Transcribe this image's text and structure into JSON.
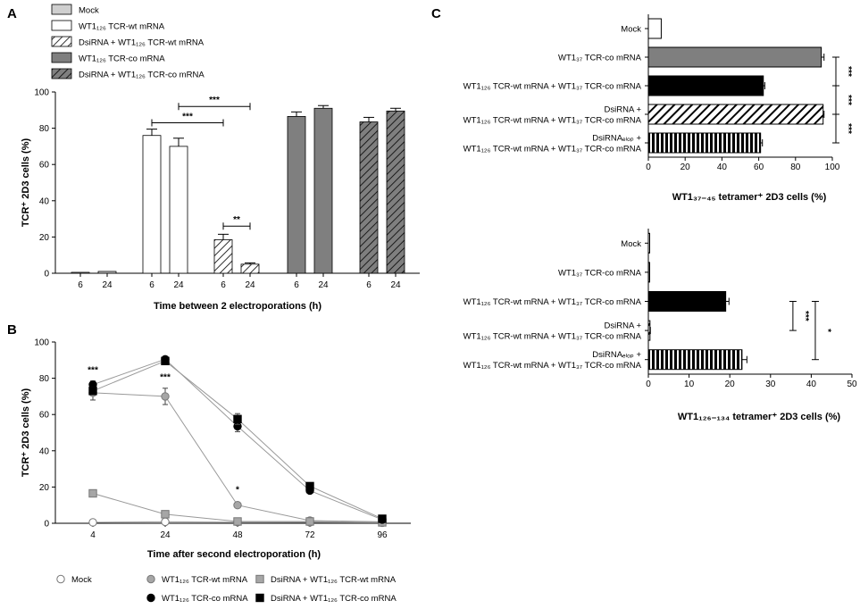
{
  "colors": {
    "mock": "#cfcfcf",
    "wt": "#ffffff",
    "co": "#7f7f7f",
    "co_line": "#000000",
    "wt_line": "#999999",
    "dsi_wt_marker": "#a6a6a6"
  },
  "chart_data": [
    {
      "panel": "A",
      "type": "bar",
      "ylabel": "TCR⁺ 2D3 cells (%)",
      "xlabel": "Time between 2 electroporations (h)",
      "ylim": [
        0,
        100
      ],
      "yticks": [
        0,
        20,
        40,
        60,
        80,
        100
      ],
      "legend": [
        {
          "label": "Mock",
          "pattern": "mock"
        },
        {
          "label": "WT1₁₂₆ TCR-wt mRNA",
          "pattern": "wt"
        },
        {
          "label": "DsiRNA + WT1₁₂₆ TCR-wt mRNA",
          "pattern": "wt-hatch"
        },
        {
          "label": "WT1₁₂₆ TCR-co mRNA",
          "pattern": "co"
        },
        {
          "label": "DsiRNA + WT1₁₂₆ TCR-co mRNA",
          "pattern": "co-hatch"
        }
      ],
      "groups": [
        {
          "pattern": "mock",
          "bars": [
            {
              "x": "6",
              "value": 0.5,
              "err": 0
            },
            {
              "x": "24",
              "value": 1,
              "err": 0
            }
          ]
        },
        {
          "pattern": "wt",
          "bars": [
            {
              "x": "6",
              "value": 76,
              "err": 3.5
            },
            {
              "x": "24",
              "value": 70,
              "err": 4.5
            }
          ]
        },
        {
          "pattern": "wt-hatch",
          "bars": [
            {
              "x": "6",
              "value": 18.5,
              "err": 3
            },
            {
              "x": "24",
              "value": 5,
              "err": 0.7
            }
          ]
        },
        {
          "pattern": "co",
          "bars": [
            {
              "x": "6",
              "value": 86.5,
              "err": 2.5
            },
            {
              "x": "24",
              "value": 91,
              "err": 1.5
            }
          ]
        },
        {
          "pattern": "co-hatch",
          "bars": [
            {
              "x": "6",
              "value": 83.5,
              "err": 2.5
            },
            {
              "x": "24",
              "value": 89.5,
              "err": 1.5
            }
          ]
        }
      ],
      "significance": [
        {
          "label": "***",
          "from": [
            1,
            0
          ],
          "to": [
            2,
            0
          ],
          "y": 83
        },
        {
          "label": "***",
          "from": [
            1,
            1
          ],
          "to": [
            2,
            1
          ],
          "y": 92
        },
        {
          "label": "**",
          "from": [
            2,
            0
          ],
          "to": [
            2,
            1
          ],
          "y": 26
        }
      ]
    },
    {
      "panel": "B",
      "type": "line",
      "ylabel": "TCR⁺ 2D3 cells (%)",
      "xlabel": "Time after second electroporation (h)",
      "categories": [
        "4",
        "24",
        "48",
        "72",
        "96"
      ],
      "ylim": [
        0,
        100
      ],
      "yticks": [
        0,
        20,
        40,
        60,
        80,
        100
      ],
      "series": [
        {
          "name": "Mock",
          "marker": "circle-open",
          "values": [
            0.5,
            0.8,
            0.6,
            0.5,
            0.3
          ],
          "err": [
            0,
            0,
            0,
            0,
            0
          ]
        },
        {
          "name": "WT1₁₂₆ TCR-wt mRNA",
          "marker": "circle-gray",
          "values": [
            72,
            70,
            10,
            1.5,
            0.8
          ],
          "err": [
            4,
            4.5,
            1,
            0.3,
            0.2
          ]
        },
        {
          "name": "DsiRNA + WT1₁₂₆ TCR-wt mRNA",
          "marker": "square-gray",
          "values": [
            16.5,
            5,
            1,
            1,
            0.5
          ],
          "err": [
            1,
            0.5,
            0.3,
            0.2,
            0.2
          ]
        },
        {
          "name": "WT1₁₂₆ TCR-co mRNA",
          "marker": "circle-black",
          "values": [
            76.5,
            90.5,
            53.5,
            18,
            2
          ],
          "err": [
            2,
            1.5,
            3,
            1.5,
            0.5
          ]
        },
        {
          "name": "DsiRNA + WT1₁₂₆ TCR-co mRNA",
          "marker": "square-black",
          "values": [
            73,
            89.5,
            57.5,
            20.5,
            2.5
          ],
          "err": [
            2,
            1.5,
            3,
            1.5,
            0.5
          ]
        }
      ],
      "annotations": [
        {
          "label": "***",
          "x": "4",
          "y": 83
        },
        {
          "label": "***",
          "x": "24",
          "y": 79
        },
        {
          "label": "*",
          "x": "48",
          "y": 17
        }
      ]
    },
    {
      "panel": "C",
      "type": "bar",
      "orientation": "horizontal",
      "xlabel": "WT1₃₇₋₄₅ tetramer⁺ 2D3 cells (%)",
      "xlim": [
        0,
        100
      ],
      "xticks": [
        0,
        20,
        40,
        60,
        80,
        100
      ],
      "bars": [
        {
          "pattern": "mock-open",
          "value": 7,
          "err": 0
        },
        {
          "pattern": "co",
          "value": 94,
          "err": 1.5
        },
        {
          "pattern": "solid-black",
          "value": 62.5,
          "err": 0.8
        },
        {
          "pattern": "diag-black",
          "value": 95,
          "err": 0.5
        },
        {
          "pattern": "vstripe-black",
          "value": 61,
          "err": 1
        }
      ],
      "significance": [
        {
          "label": "***",
          "from": 1,
          "to": 2
        },
        {
          "label": "***",
          "from": 2,
          "to": 3
        },
        {
          "label": "***",
          "from": 3,
          "to": 4
        }
      ]
    },
    {
      "panel": "C",
      "type": "bar",
      "orientation": "horizontal",
      "xlabel": "WT1₁₂₆₋₁₃₄ tetramer⁺ 2D3 cells (%)",
      "xlim": [
        0,
        50
      ],
      "xticks": [
        0,
        10,
        20,
        30,
        40,
        50
      ],
      "bars": [
        {
          "pattern": "mock-open",
          "value": 0.3,
          "err": 0
        },
        {
          "pattern": "co",
          "value": 0.2,
          "err": 0
        },
        {
          "pattern": "solid-black",
          "value": 19,
          "err": 0.8
        },
        {
          "pattern": "diag-black",
          "value": 0.4,
          "err": 0.1
        },
        {
          "pattern": "vstripe-black",
          "value": 23,
          "err": 1.2
        }
      ],
      "significance": [
        {
          "label": "***",
          "from": 2,
          "to": 3,
          "x": 35.5
        },
        {
          "label": "*",
          "from": 2,
          "to": 4,
          "x": 41
        }
      ]
    }
  ],
  "c_labels": [
    [
      "Mock"
    ],
    [
      "WT1₃₇ TCR-co mRNA"
    ],
    [
      "WT1₁₂₆ TCR-wt mRNA + WT1₃₇ TCR-co mRNA"
    ],
    [
      "DsiRNA +",
      "WT1₁₂₆ TCR-wt mRNA + WT1₃₇ TCR-co mRNA"
    ],
    [
      "DsiRNAₑₗₒₚ +",
      "WT1₁₂₆ TCR-wt mRNA + WT1₃₇ TCR-co mRNA"
    ]
  ],
  "c_label_second_subscript": "EGFP"
}
